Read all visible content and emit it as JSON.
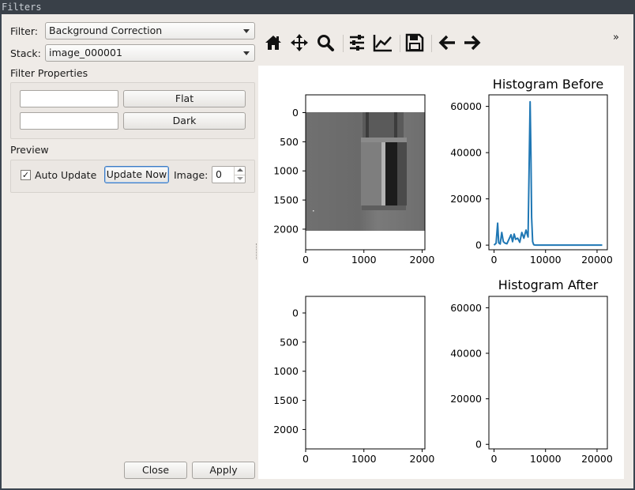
{
  "window": {
    "title": "Filters"
  },
  "left_panel": {
    "filter": {
      "label": "Filter:",
      "value": "Background Correction"
    },
    "stack": {
      "label": "Stack:",
      "value": "image_000001"
    },
    "filter_properties": {
      "title": "Filter Properties",
      "flat_button": "Flat",
      "dark_button": "Dark",
      "flat_path": "",
      "dark_path": ""
    },
    "preview": {
      "title": "Preview",
      "auto_update_label": "Auto Update",
      "auto_update_checked": true,
      "checkmark": "✓",
      "update_now_button": "Update Now",
      "image_label": "Image:",
      "image_value": "0"
    },
    "close_button": "Close",
    "apply_button": "Apply"
  },
  "toolbar": {
    "tools": [
      {
        "name": "home-icon"
      },
      {
        "name": "pan-icon"
      },
      {
        "name": "zoom-icon"
      },
      {
        "name": "configure-subplots-icon"
      },
      {
        "name": "edit-axis-icon"
      },
      {
        "name": "save-icon"
      },
      {
        "name": "back-icon"
      },
      {
        "name": "forward-icon"
      }
    ],
    "overflow": "»"
  },
  "chart_data": [
    {
      "type": "image",
      "title": "",
      "xlim": [
        0,
        2048
      ],
      "ylim": [
        2048,
        0
      ],
      "xticks": [
        "0",
        "1000",
        "2000"
      ],
      "yticks": [
        "0",
        "500",
        "1000",
        "1500",
        "2000"
      ]
    },
    {
      "type": "line",
      "title": "Histogram Before",
      "xlim": [
        -1000,
        22000
      ],
      "ylim": [
        -2000,
        65000
      ],
      "xticks": [
        "0",
        "10000",
        "20000"
      ],
      "yticks": [
        "0",
        "20000",
        "40000",
        "60000"
      ],
      "line_color": "#1f77b4",
      "series": [
        {
          "x": [
            0,
            400,
            700,
            900,
            1200,
            1500,
            1800,
            2100,
            2500,
            2900,
            3300,
            3600,
            3900,
            4200,
            4600,
            5000,
            5400,
            5800,
            6200,
            6600,
            7000,
            7150,
            7300,
            7500,
            7700,
            7900,
            8200,
            9000,
            10000,
            12000,
            15000,
            18000,
            21000
          ],
          "y": [
            0,
            800,
            9500,
            1000,
            500,
            5500,
            1500,
            900,
            600,
            2500,
            4500,
            1500,
            4800,
            2500,
            3000,
            1200,
            5500,
            3000,
            6500,
            3500,
            62000,
            40000,
            12000,
            1500,
            200,
            50,
            0,
            0,
            0,
            0,
            0,
            0,
            0
          ]
        }
      ]
    },
    {
      "type": "image",
      "title": "",
      "xlim": [
        0,
        2048
      ],
      "ylim": [
        2048,
        0
      ],
      "xticks": [
        "0",
        "1000",
        "2000"
      ],
      "yticks": [
        "0",
        "500",
        "1000",
        "1500",
        "2000"
      ]
    },
    {
      "type": "line",
      "title": "Histogram After",
      "xlim": [
        -1000,
        22000
      ],
      "ylim": [
        -2000,
        65000
      ],
      "xticks": [
        "0",
        "10000",
        "20000"
      ],
      "yticks": [
        "0",
        "20000",
        "40000",
        "60000"
      ],
      "series": []
    }
  ]
}
